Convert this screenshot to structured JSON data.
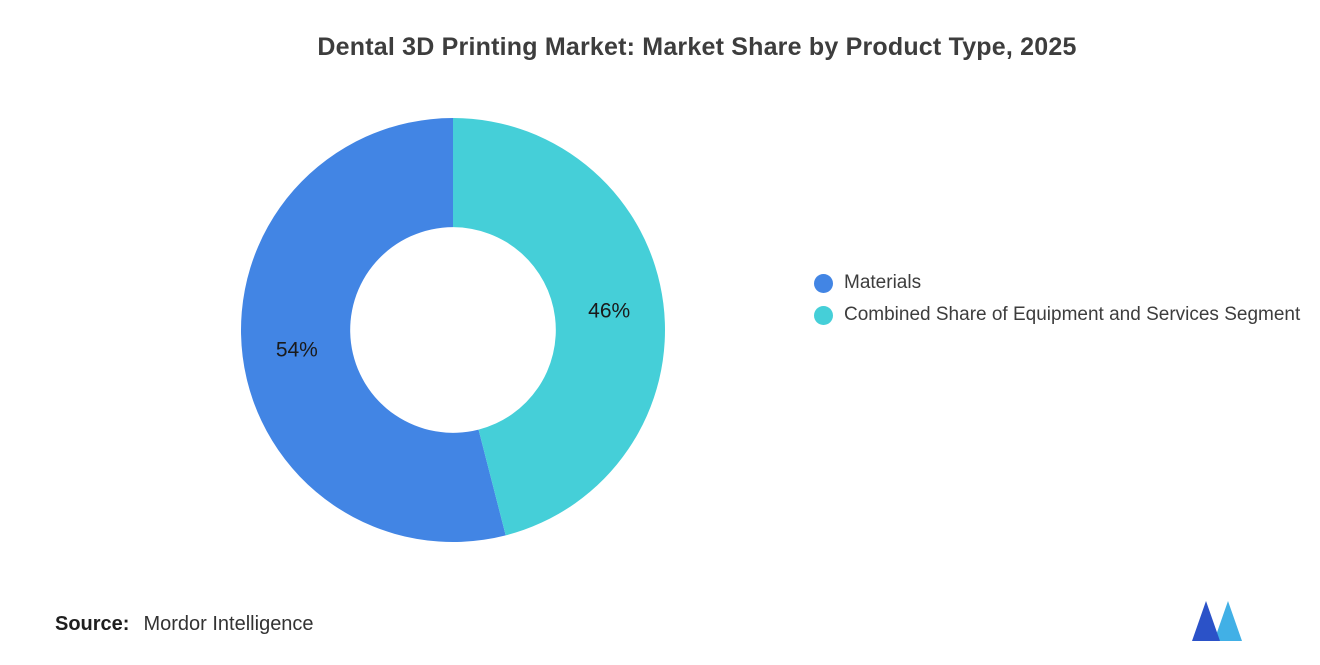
{
  "title": "Dental 3D Printing Market: Market Share by Product Type, 2025",
  "legend": {
    "items": [
      {
        "label": "Materials",
        "color": "#4285E4"
      },
      {
        "label": "Combined Share of Equipment and Services Segment",
        "color": "#45CFD8"
      }
    ]
  },
  "source": {
    "label": "Source:",
    "value": "Mordor Intelligence"
  },
  "logo": {
    "name": "Mordor Intelligence logo",
    "color_primary": "#2B52C8",
    "color_secondary": "#41B0E6"
  },
  "chart_data": {
    "type": "pie",
    "donut": true,
    "title": "Dental 3D Printing Market: Market Share by Product Type, 2025",
    "categories": [
      "Materials",
      "Combined Share of Equipment and Services Segment"
    ],
    "values": [
      54,
      46
    ],
    "data_labels": [
      "54%",
      "46%"
    ],
    "colors": [
      "#4285E4",
      "#45CFD8"
    ],
    "start_angle_deg": 165.6,
    "inner_radius_ratio": 0.485,
    "legend_position": "right",
    "grid": false
  }
}
